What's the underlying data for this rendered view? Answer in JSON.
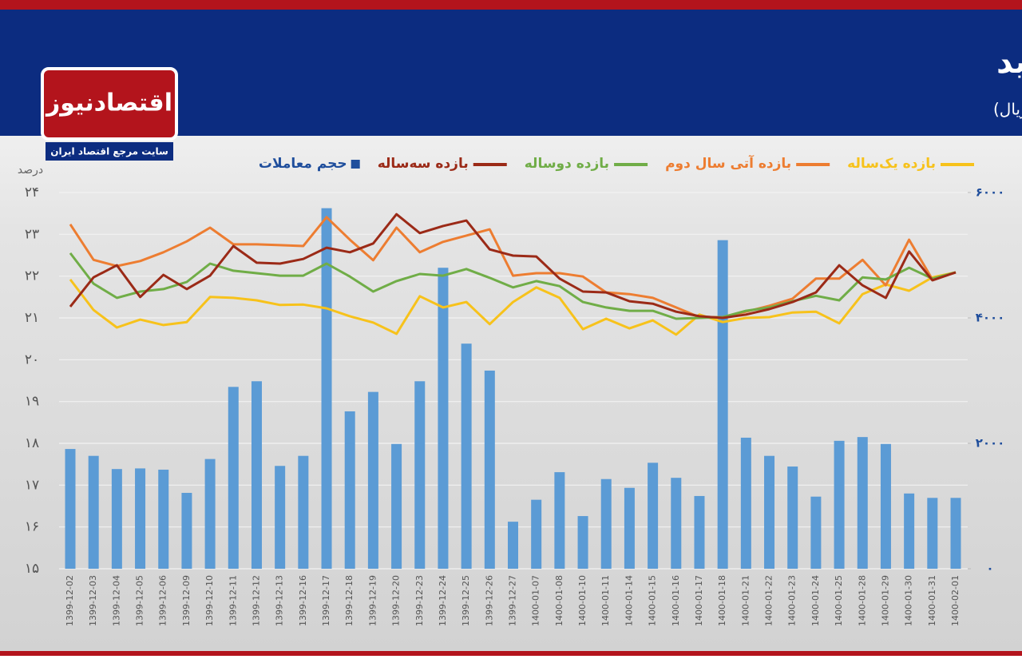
{
  "header": {
    "title": "| روند نرخ اوراق سررسید",
    "subtitle": "(واحد:میلیارد ریال)"
  },
  "logo": {
    "name": "اقتصادنیوز",
    "tagline": "سایت مرجع اقتصاد ایران"
  },
  "chart_data": {
    "type": "combo",
    "y_label": "درصد",
    "categories": [
      "1399-12-02",
      "1399-12-03",
      "1399-12-04",
      "1399-12-05",
      "1399-12-06",
      "1399-12-09",
      "1399-12-10",
      "1399-12-11",
      "1399-12-12",
      "1399-12-13",
      "1399-12-16",
      "1399-12-17",
      "1399-12-18",
      "1399-12-19",
      "1399-12-20",
      "1399-12-23",
      "1399-12-24",
      "1399-12-25",
      "1399-12-26",
      "1399-12-27",
      "1400-01-07",
      "1400-01-08",
      "1400-01-10",
      "1400-01-11",
      "1400-01-14",
      "1400-01-15",
      "1400-01-16",
      "1400-01-17",
      "1400-01-18",
      "1400-01-21",
      "1400-01-22",
      "1400-01-23",
      "1400-01-24",
      "1400-01-25",
      "1400-01-28",
      "1400-01-29",
      "1400-01-30",
      "1400-01-31",
      "1400-02-01"
    ],
    "series": [
      {
        "name": "بازده یک‌ساله",
        "type": "line",
        "color": "#f7c21b",
        "values": [
          21.92,
          21.19,
          20.77,
          20.96,
          20.83,
          20.9,
          21.5,
          21.48,
          21.42,
          21.31,
          21.32,
          21.23,
          21.04,
          20.89,
          20.62,
          21.52,
          21.25,
          21.38,
          20.85,
          21.38,
          21.73,
          21.48,
          20.73,
          20.98,
          20.75,
          20.94,
          20.6,
          21.08,
          20.9,
          21.0,
          21.02,
          21.13,
          21.15,
          20.87,
          21.57,
          21.8,
          21.65,
          21.97,
          22.09
        ]
      },
      {
        "name": "بازده آتی سال دوم",
        "type": "line",
        "color": "#ed7d31",
        "values": [
          23.24,
          22.39,
          22.24,
          22.36,
          22.57,
          22.83,
          23.16,
          22.76,
          22.76,
          22.74,
          22.72,
          23.41,
          22.87,
          22.38,
          23.16,
          22.57,
          22.82,
          22.97,
          23.12,
          22.01,
          22.07,
          22.07,
          21.99,
          21.61,
          21.57,
          21.48,
          21.25,
          21.02,
          21.02,
          21.15,
          21.29,
          21.46,
          21.94,
          21.94,
          22.39,
          21.78,
          22.87,
          21.92,
          22.09
        ]
      },
      {
        "name": "بازده دوساله",
        "type": "line",
        "color": "#70ad47",
        "values": [
          22.55,
          21.82,
          21.48,
          21.63,
          21.69,
          21.86,
          22.3,
          22.13,
          22.07,
          22.01,
          22.01,
          22.3,
          21.99,
          21.63,
          21.88,
          22.05,
          22.01,
          22.17,
          21.96,
          21.73,
          21.88,
          21.76,
          21.38,
          21.25,
          21.17,
          21.17,
          20.98,
          21.0,
          21.02,
          21.17,
          21.25,
          21.4,
          21.53,
          21.42,
          21.97,
          21.92,
          22.2,
          21.94,
          22.09
        ]
      },
      {
        "name": "بازده سه‌ساله",
        "type": "line",
        "color": "#9b2a17",
        "values": [
          21.27,
          21.97,
          22.26,
          21.5,
          22.03,
          21.69,
          22.01,
          22.72,
          22.32,
          22.3,
          22.41,
          22.68,
          22.57,
          22.78,
          23.48,
          23.03,
          23.2,
          23.33,
          22.64,
          22.49,
          22.47,
          21.94,
          21.63,
          21.61,
          21.4,
          21.34,
          21.15,
          21.04,
          21.0,
          21.08,
          21.21,
          21.38,
          21.61,
          22.26,
          21.78,
          21.48,
          22.59,
          21.9,
          22.09
        ]
      },
      {
        "name": "حجم معاملات",
        "type": "bar",
        "axis": "y2",
        "color": "#5b9bd5",
        "legend_color": "#1f4e9c",
        "values": [
          1910,
          1800,
          1590,
          1600,
          1580,
          1210,
          1750,
          2900,
          2990,
          1640,
          1800,
          5750,
          2510,
          2820,
          1990,
          2990,
          4800,
          3590,
          3160,
          750,
          1100,
          1540,
          840,
          1430,
          1290,
          1690,
          1450,
          1160,
          5240,
          2090,
          1800,
          1630,
          1150,
          2040,
          2100,
          1990,
          1200,
          1130,
          1130
        ]
      }
    ],
    "ylim": [
      15,
      24
    ],
    "yticks": [
      {
        "value": 15,
        "label": "۱۵"
      },
      {
        "value": 16,
        "label": "۱۶"
      },
      {
        "value": 17,
        "label": "۱۷"
      },
      {
        "value": 18,
        "label": "۱۸"
      },
      {
        "value": 19,
        "label": "۱۹"
      },
      {
        "value": 20,
        "label": "۲۰"
      },
      {
        "value": 21,
        "label": "۲۱"
      },
      {
        "value": 22,
        "label": "۲۲"
      },
      {
        "value": 23,
        "label": "۲۳"
      },
      {
        "value": 24,
        "label": "۲۴"
      }
    ],
    "y2lim": [
      0,
      6000
    ],
    "y2ticks": [
      {
        "value": 0,
        "label": "۰"
      },
      {
        "value": 2000,
        "label": "۲۰۰۰"
      },
      {
        "value": 4000,
        "label": "۴۰۰۰"
      },
      {
        "value": 6000,
        "label": "۶۰۰۰"
      }
    ],
    "grid": true
  }
}
